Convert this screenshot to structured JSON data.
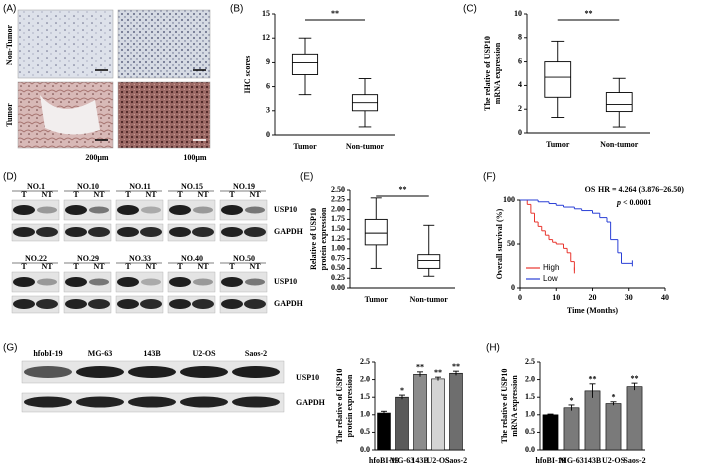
{
  "panel_labels": [
    "(A)",
    "(B)",
    "(C)",
    "(D)",
    "(E)",
    "(F)",
    "(G)",
    "(H)"
  ],
  "ihc": {
    "row_labels": [
      "Non-Tumor",
      "Tumor"
    ],
    "scale_bars": [
      "200μm",
      "100μm"
    ]
  },
  "western_d": {
    "groups": [
      [
        "NO.1",
        "NO.10",
        "NO.11",
        "NO.15",
        "NO.19"
      ],
      [
        "NO.22",
        "NO.29",
        "NO.33",
        "NO.40",
        "NO.50"
      ]
    ],
    "lane_labels": [
      "T",
      "NT"
    ],
    "proteins": [
      "USP10",
      "GAPDH"
    ]
  },
  "western_g": {
    "lanes": [
      "hfobI-19",
      "MG-63",
      "143B",
      "U2-OS",
      "Saos-2"
    ],
    "proteins": [
      "USP10",
      "GAPDH"
    ]
  },
  "chart_data": [
    {
      "type": "box",
      "ylabel": [
        "IHC scores"
      ],
      "categories": [
        "Tumor",
        "Non-tumor"
      ],
      "boxes": [
        {
          "min": 5,
          "q1": 7.5,
          "median": 9,
          "q3": 10,
          "max": 12
        },
        {
          "min": 1,
          "q1": 3,
          "median": 4,
          "q3": 5,
          "max": 7
        }
      ],
      "ylim": [
        0,
        15
      ],
      "yticks": [
        0,
        3,
        6,
        9,
        12,
        15
      ],
      "annotation": "**"
    },
    {
      "type": "box",
      "ylabel": [
        "The relative of USP10",
        "mRNA expression"
      ],
      "categories": [
        "Tumor",
        "Non-tumor"
      ],
      "boxes": [
        {
          "min": 1.3,
          "q1": 3,
          "median": 4.7,
          "q3": 6,
          "max": 7.7
        },
        {
          "min": 0.5,
          "q1": 1.8,
          "median": 2.4,
          "q3": 3.4,
          "max": 4.6
        }
      ],
      "ylim": [
        0,
        10
      ],
      "yticks": [
        0,
        2,
        4,
        6,
        8,
        10
      ],
      "annotation": "**"
    },
    {
      "type": "box",
      "ylabel": [
        "Relative of USP10",
        "protein expression"
      ],
      "categories": [
        "Tumor",
        "Non-tumor"
      ],
      "boxes": [
        {
          "min": 0.5,
          "q1": 1.1,
          "median": 1.4,
          "q3": 1.75,
          "max": 2.3
        },
        {
          "min": 0.3,
          "q1": 0.5,
          "median": 0.7,
          "q3": 0.85,
          "max": 1.6
        }
      ],
      "ylim": [
        0,
        2.5
      ],
      "yticks": [
        {
          "value": 0,
          "label": "0.00"
        },
        {
          "value": 0.25,
          "label": "0.25"
        },
        {
          "value": 0.5,
          "label": "0.50"
        },
        {
          "value": 0.75,
          "label": "0.75"
        },
        {
          "value": 1,
          "label": "1.00"
        },
        {
          "value": 1.25,
          "label": "1.25"
        },
        {
          "value": 1.5,
          "label": "1.50"
        },
        {
          "value": 1.75,
          "label": "1.75"
        },
        {
          "value": 2,
          "label": "2.00"
        },
        {
          "value": 2.25,
          "label": "2.25"
        },
        {
          "value": 2.5,
          "label": "2.50"
        }
      ],
      "annotation": "**"
    },
    {
      "type": "step",
      "title": "OS",
      "annotation": "HR = 4.264 (3.876–26.50)",
      "p_symbol": "p",
      "p_text": "< 0.0001",
      "xlabel": "Time (Months)",
      "ylabel": [
        "Overall survival (%)"
      ],
      "series": [
        {
          "name": "High",
          "color": "#e8352e",
          "x": [
            0,
            2,
            3,
            4,
            5,
            6,
            7,
            8,
            9,
            10,
            11,
            12,
            13,
            14,
            15
          ],
          "values": [
            100,
            95,
            85,
            75,
            70,
            65,
            60,
            55,
            52,
            50,
            50,
            45,
            40,
            30,
            20
          ]
        },
        {
          "name": "Low",
          "color": "#2a3fd6",
          "x": [
            0,
            5,
            8,
            10,
            12,
            15,
            17,
            20,
            22,
            24,
            25,
            27,
            28,
            31
          ],
          "values": [
            100,
            98,
            96,
            94,
            92,
            90,
            88,
            85,
            80,
            75,
            55,
            40,
            28,
            28
          ]
        }
      ],
      "xlim": [
        0,
        40
      ],
      "xticks": [
        0,
        10,
        20,
        30,
        40
      ],
      "ylim": [
        0,
        100
      ],
      "yticks": [
        0,
        50,
        100
      ]
    },
    {
      "type": "bar",
      "ylabel": [
        "The relative of USP10",
        "protein expression"
      ],
      "categories": [
        "hfoBI-19",
        "MG-63",
        "143B",
        "U2-OS",
        "Saos-2"
      ],
      "values": [
        1.05,
        1.5,
        2.15,
        2.02,
        2.18
      ],
      "errors": [
        0.05,
        0.06,
        0.07,
        0.05,
        0.06
      ],
      "significance": [
        null,
        "*",
        "**",
        "**",
        "**"
      ],
      "colors": [
        "#000000",
        "#5a5a5a",
        "#8c8c8c",
        "#d4d4d4",
        "#6e6e6e"
      ],
      "ylim": [
        0,
        2.5
      ],
      "yticks": [
        {
          "value": 0,
          "label": "0.0"
        },
        {
          "value": 0.5,
          "label": "0.5"
        },
        {
          "value": 1,
          "label": "1.0"
        },
        {
          "value": 1.5,
          "label": "1.5"
        },
        {
          "value": 2,
          "label": "2.0"
        },
        {
          "value": 2.5,
          "label": "2.5"
        }
      ]
    },
    {
      "type": "bar",
      "ylabel": [
        "The relative of USP10",
        "mRNA expression"
      ],
      "categories": [
        "hfoBI-19",
        "MG-63",
        "143B",
        "U2-OS",
        "Saos-2"
      ],
      "values": [
        1.0,
        1.2,
        1.68,
        1.32,
        1.8
      ],
      "errors": [
        0.02,
        0.08,
        0.2,
        0.05,
        0.1
      ],
      "significance": [
        null,
        "*",
        "**",
        "*",
        "**"
      ],
      "colors": [
        "#000000",
        "#7a7a7a",
        "#7a7a7a",
        "#7a7a7a",
        "#7a7a7a"
      ],
      "ylim": [
        0,
        2.5
      ],
      "yticks": [
        {
          "value": 0,
          "label": "0.0"
        },
        {
          "value": 0.5,
          "label": "0.5"
        },
        {
          "value": 1,
          "label": "1.0"
        },
        {
          "value": 1.5,
          "label": "1.5"
        },
        {
          "value": 2,
          "label": "2.0"
        },
        {
          "value": 2.5,
          "label": "2.5"
        }
      ]
    }
  ]
}
